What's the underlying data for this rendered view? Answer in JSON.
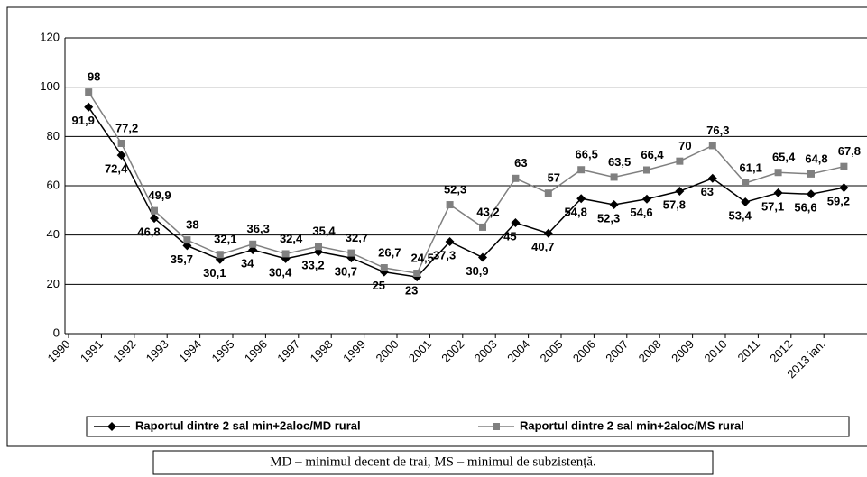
{
  "chart_data": {
    "type": "line",
    "categories": [
      "1990",
      "1991",
      "1992",
      "1993",
      "1994",
      "1995",
      "1996",
      "1997",
      "1998",
      "1999",
      "2000",
      "2001",
      "2002",
      "2003",
      "2004",
      "2005",
      "2006",
      "2007",
      "2008",
      "2009",
      "2010",
      "2011",
      "2012",
      "2013 ian."
    ],
    "series": [
      {
        "name": "Raportul dintre 2 sal min+2aloc/MD rural",
        "color": "#000000",
        "marker": "diamond",
        "values": [
          91.9,
          72.4,
          46.8,
          35.7,
          30.1,
          34,
          30.4,
          33.2,
          30.7,
          25,
          23,
          37.3,
          30.9,
          45,
          40.7,
          54.8,
          52.3,
          54.6,
          57.8,
          63,
          53.4,
          57.1,
          56.6,
          59.2
        ],
        "value_labels": [
          "91,9",
          "72,4",
          "46,8",
          "35,7",
          "30,1",
          "34",
          "30,4",
          "33,2",
          "30,7",
          "25",
          "23",
          "37,3",
          "30,9",
          "45",
          "40,7",
          "54,8",
          "52,3",
          "54,6",
          "57,8",
          "63",
          "53,4",
          "57,1",
          "56,6",
          "59,2"
        ]
      },
      {
        "name": "Raportul dintre 2 sal min+2aloc/MS rural",
        "color": "#808080",
        "marker": "square",
        "values": [
          98,
          77.2,
          49.9,
          38,
          32.1,
          36.3,
          32.4,
          35.4,
          32.7,
          26.7,
          24.5,
          52.3,
          43.2,
          63,
          57,
          66.5,
          63.5,
          66.4,
          70,
          76.3,
          61.1,
          65.4,
          64.8,
          67.8
        ],
        "value_labels": [
          "98",
          "77,2",
          "49,9",
          "38",
          "32,1",
          "36,3",
          "32,4",
          "35,4",
          "32,7",
          "26,7",
          "24,5",
          "52,3",
          "43,2",
          "63",
          "57",
          "66,5",
          "63,5",
          "66,4",
          "70",
          "76,3",
          "61,1",
          "65,4",
          "64,8",
          "67,8"
        ]
      }
    ],
    "ylim": [
      0,
      120
    ],
    "yticks": [
      0,
      20,
      40,
      60,
      80,
      100,
      120
    ],
    "grid": true,
    "legend": "bottom"
  },
  "note": "MD – minimul decent de trai, MS – minimul de subzistență."
}
